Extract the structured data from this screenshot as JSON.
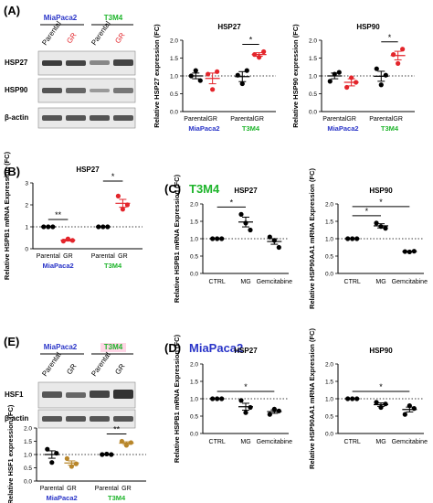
{
  "colors": {
    "miapaca": "#2a35c8",
    "t3m4": "#1fb52c",
    "gr": "#e3252b",
    "black": "#000000",
    "gold": "#b8862a",
    "blot_bg": "#e9e9e9",
    "highlight": "#ffd6e6"
  },
  "panel_labels": {
    "A": "(A)",
    "B": "(B)",
    "C": "(C)",
    "D": "(D)",
    "E": "(E)"
  },
  "section_titles": {
    "C": "T3M4",
    "D": "MiaPaca2"
  },
  "blots": {
    "A": {
      "lines": [
        "MiaPaca2",
        "T3M4"
      ],
      "lanes": [
        "Parental",
        "GR",
        "Parental",
        "GR"
      ],
      "bands": [
        "HSP27",
        "HSP90",
        "β-actin"
      ]
    },
    "E": {
      "lines": [
        "MiaPaca2",
        "T3M4"
      ],
      "lanes": [
        "Parental",
        "GR",
        "Parental",
        "GR"
      ],
      "bands": [
        "HSF1",
        "β-actin"
      ]
    }
  },
  "chart_data": [
    {
      "id": "a-hsp27",
      "type": "scatter",
      "title": "HSP27",
      "ylabel": "Relative HSP27 expression (FC)",
      "categories": [
        "Parental",
        "GR",
        "Parental",
        "GR"
      ],
      "groups": [
        "MiaPaca2",
        "T3M4"
      ],
      "yticks": [
        "0.0",
        "0.5",
        "1.0",
        "1.5",
        "2.0"
      ],
      "ylim": [
        0,
        2.0
      ],
      "reference_line": 1,
      "points": [
        [
          1.0,
          1.15,
          0.87
        ],
        [
          1.05,
          0.62,
          1.12
        ],
        [
          1.02,
          0.78,
          1.15
        ],
        [
          1.6,
          1.52,
          1.68
        ]
      ],
      "means": [
        1.0,
        0.93,
        0.98,
        1.6
      ],
      "sems": [
        0.08,
        0.15,
        0.14,
        0.05
      ],
      "colors": [
        "black",
        "gr",
        "black",
        "gr"
      ],
      "significance": [
        {
          "from": 2,
          "to": 3,
          "label": "*"
        }
      ]
    },
    {
      "id": "a-hsp90",
      "type": "scatter",
      "title": "HSP90",
      "ylabel": "Relative HSP90 expression (FC)",
      "categories": [
        "Parental",
        "GR",
        "Parental",
        "GR"
      ],
      "groups": [
        "MiaPaca2",
        "T3M4"
      ],
      "yticks": [
        "0.0",
        "0.5",
        "1.0",
        "1.5",
        "2.0"
      ],
      "ylim": [
        0,
        2.0
      ],
      "reference_line": 1,
      "points": [
        [
          0.85,
          1.05,
          1.1
        ],
        [
          0.68,
          0.95,
          0.82
        ],
        [
          1.2,
          0.75,
          1.02
        ],
        [
          1.6,
          1.35,
          1.75
        ]
      ],
      "means": [
        1.0,
        0.82,
        0.99,
        1.57
      ],
      "sems": [
        0.08,
        0.1,
        0.14,
        0.12
      ],
      "colors": [
        "black",
        "gr",
        "black",
        "gr"
      ],
      "significance": [
        {
          "from": 2,
          "to": 3,
          "label": "*"
        }
      ]
    },
    {
      "id": "b-hsp27",
      "type": "scatter",
      "title": "HSP27",
      "ylabel": "Relative HSPB1 mRNA Expression (FC)",
      "categories": [
        "Parental",
        "GR",
        "Parental",
        "GR"
      ],
      "groups": [
        "MiaPaca2",
        "T3M4"
      ],
      "yticks": [
        "0",
        "1",
        "2",
        "3"
      ],
      "ylim": [
        0,
        3
      ],
      "reference_line": 1,
      "points": [
        [
          1.0,
          1.0,
          1.0
        ],
        [
          0.35,
          0.45,
          0.38
        ],
        [
          1.0,
          1.0,
          1.0
        ],
        [
          2.4,
          1.8,
          2.0
        ]
      ],
      "means": [
        1.0,
        0.39,
        1.0,
        2.07
      ],
      "sems": [
        0.0,
        0.04,
        0.0,
        0.18
      ],
      "colors": [
        "black",
        "gr",
        "black",
        "gr"
      ],
      "significance": [
        {
          "from": 0,
          "to": 1,
          "label": "**"
        },
        {
          "from": 2,
          "to": 3,
          "label": "*"
        }
      ]
    },
    {
      "id": "c-hsp27",
      "type": "scatter",
      "title": "HSP27",
      "ylabel": "Relative HSPB1 mRNA Expression (FC)",
      "categories": [
        "CTRL",
        "MG",
        "Gemcitabine"
      ],
      "yticks": [
        "0.0",
        "0.5",
        "1.0",
        "1.5",
        "2.0"
      ],
      "ylim": [
        0,
        2.0
      ],
      "reference_line": 1,
      "points": [
        [
          1.0,
          1.0,
          1.0
        ],
        [
          1.7,
          1.45,
          1.25
        ],
        [
          1.05,
          0.95,
          0.75
        ]
      ],
      "means": [
        1.0,
        1.48,
        0.92
      ],
      "sems": [
        0.0,
        0.14,
        0.08
      ],
      "colors": [
        "black",
        "black",
        "black"
      ],
      "significance": [
        {
          "from": 0,
          "to": 1,
          "label": "*"
        }
      ]
    },
    {
      "id": "c-hsp90",
      "type": "scatter",
      "title": "HSP90",
      "ylabel": "Relative HSP90AA1 mRNA Expression (FC)",
      "categories": [
        "CTRL",
        "MG",
        "Gemcitabine"
      ],
      "yticks": [
        "0.0",
        "0.5",
        "1.0",
        "1.5",
        "2.0"
      ],
      "ylim": [
        0,
        2.0
      ],
      "reference_line": 1,
      "points": [
        [
          1.0,
          1.0,
          1.0
        ],
        [
          1.45,
          1.35,
          1.3
        ],
        [
          0.63,
          0.62,
          0.64
        ]
      ],
      "means": [
        1.0,
        1.37,
        0.63
      ],
      "sems": [
        0.0,
        0.06,
        0.01
      ],
      "colors": [
        "black",
        "black",
        "black"
      ],
      "significance": [
        {
          "from": 0,
          "to": 1,
          "label": "*"
        },
        {
          "from": 0,
          "to": 2,
          "label": "*"
        }
      ]
    },
    {
      "id": "d-hsp27",
      "type": "scatter",
      "title": "HSP27",
      "ylabel": "Relative HSPB1 mRNA Expression (FC)",
      "categories": [
        "CTRL",
        "MG",
        "Gemcitabine"
      ],
      "yticks": [
        "0.0",
        "0.5",
        "1.0",
        "1.5",
        "2.0"
      ],
      "ylim": [
        0,
        2.0
      ],
      "reference_line": 1,
      "points": [
        [
          1.0,
          1.0,
          1.0
        ],
        [
          0.95,
          0.6,
          0.75
        ],
        [
          0.55,
          0.7,
          0.65
        ]
      ],
      "means": [
        1.0,
        0.77,
        0.63
      ],
      "sems": [
        0.0,
        0.1,
        0.05
      ],
      "colors": [
        "black",
        "black",
        "black"
      ],
      "significance": [
        {
          "from": 0,
          "to": 2,
          "label": "*"
        }
      ]
    },
    {
      "id": "d-hsp90",
      "type": "scatter",
      "title": "HSP90",
      "ylabel": "Relative HSP90AA1 mRNA Expression (FC)",
      "categories": [
        "CTRL",
        "MG",
        "Gemcitabine"
      ],
      "yticks": [
        "0.0",
        "0.5",
        "1.0",
        "1.5",
        "2.0"
      ],
      "ylim": [
        0,
        2.0
      ],
      "reference_line": 1,
      "points": [
        [
          1.0,
          1.0,
          1.0
        ],
        [
          0.9,
          0.75,
          0.85
        ],
        [
          0.55,
          0.8,
          0.72
        ]
      ],
      "means": [
        1.0,
        0.83,
        0.69
      ],
      "sems": [
        0.0,
        0.05,
        0.07
      ],
      "colors": [
        "black",
        "black",
        "black"
      ],
      "significance": [
        {
          "from": 0,
          "to": 2,
          "label": "*"
        }
      ]
    },
    {
      "id": "e-hsf1",
      "type": "scatter",
      "ylabel": "Relative HSF1 expression (FC)",
      "categories": [
        "Parental",
        "GR",
        "Parental",
        "GR"
      ],
      "groups": [
        "MiaPaca2",
        "T3M4"
      ],
      "yticks": [
        "0.0",
        "0.5",
        "1.0",
        "1.5",
        "2.0"
      ],
      "ylim": [
        0,
        2.0
      ],
      "reference_line": 1,
      "points": [
        [
          1.2,
          0.7,
          1.05
        ],
        [
          0.85,
          0.55,
          0.65
        ],
        [
          1.0,
          1.02,
          1.0
        ],
        [
          1.5,
          1.35,
          1.45
        ]
      ],
      "means": [
        1.0,
        0.68,
        1.0,
        1.43
      ],
      "sems": [
        0.14,
        0.08,
        0.01,
        0.05
      ],
      "colors": [
        "black",
        "gold",
        "black",
        "gold"
      ],
      "significance": [
        {
          "from": 2,
          "to": 3,
          "label": "**"
        }
      ]
    }
  ]
}
